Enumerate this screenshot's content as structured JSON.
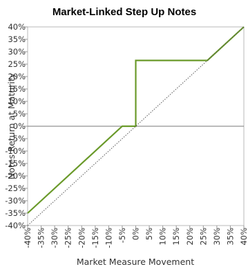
{
  "chart_data": {
    "type": "line",
    "title": "Market-Linked Step Up Notes",
    "xlabel": "Market Measure Movement",
    "ylabel": "Notes Return at Maturity",
    "xlim": [
      -40,
      40
    ],
    "ylim": [
      -40,
      40
    ],
    "x_tick_labels": [
      "-40%",
      "-35%",
      "-30%",
      "-25%",
      "-20%",
      "-15%",
      "-10%",
      "-5%",
      "0%",
      "5%",
      "10%",
      "15%",
      "20%",
      "25%",
      "30%",
      "35%",
      "40%"
    ],
    "y_tick_labels": [
      "40%",
      "35%",
      "30%",
      "25%",
      "20%",
      "15%",
      "10%",
      "5%",
      "0%",
      "-5%",
      "-10%",
      "-15%",
      "-20%",
      "-25%",
      "-30%",
      "-35%",
      "-40%"
    ],
    "x_ticks": [
      -40,
      -35,
      -30,
      -25,
      -20,
      -15,
      -10,
      -5,
      0,
      5,
      10,
      15,
      20,
      25,
      30,
      35,
      40
    ],
    "y_ticks": [
      40,
      35,
      30,
      25,
      20,
      15,
      10,
      5,
      0,
      -5,
      -10,
      -15,
      -20,
      -25,
      -30,
      -35,
      -40
    ],
    "grid": false,
    "series": [
      {
        "style": "solid",
        "color": "#6a9a2a",
        "points": [
          [
            -40,
            -35
          ],
          [
            -5,
            0
          ],
          [
            0,
            0
          ],
          [
            0,
            26.5
          ],
          [
            26.5,
            26.5
          ],
          [
            40,
            40
          ]
        ]
      },
      {
        "style": "dotted",
        "color": "#555555",
        "points": [
          [
            -40,
            -40
          ],
          [
            40,
            40
          ]
        ]
      }
    ]
  }
}
